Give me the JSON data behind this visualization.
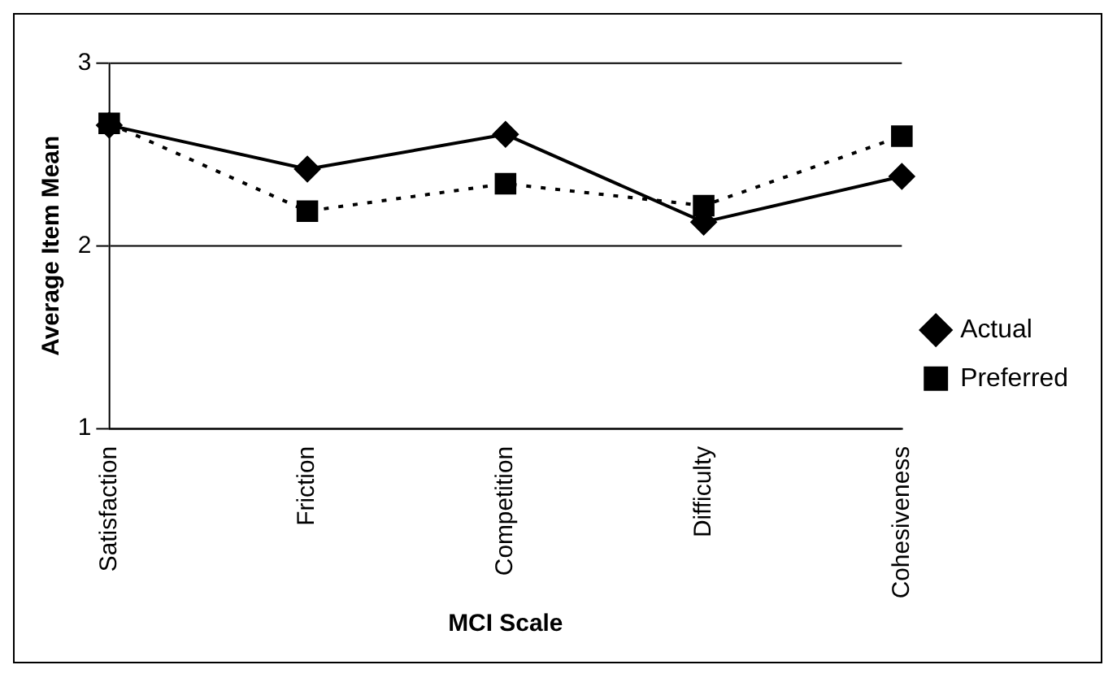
{
  "chart_data": {
    "type": "line",
    "xlabel": "MCI Scale",
    "ylabel": "Average Item Mean",
    "categories": [
      "Satisfaction",
      "Friction",
      "Competition",
      "Difficulty",
      "Cohesiveness"
    ],
    "series": [
      {
        "name": "Actual",
        "color": "#000000",
        "values": [
          2.66,
          2.42,
          2.61,
          2.13,
          2.38
        ],
        "marker": "diamond",
        "line_style": "solid"
      },
      {
        "name": "Preferred",
        "color": "#000000",
        "values": [
          2.67,
          2.19,
          2.34,
          2.22,
          2.6
        ],
        "marker": "square",
        "line_style": "dotted"
      }
    ],
    "ylim": [
      1,
      3
    ],
    "yticks": [
      1,
      2,
      3
    ],
    "grid": "y",
    "legend": "right"
  }
}
